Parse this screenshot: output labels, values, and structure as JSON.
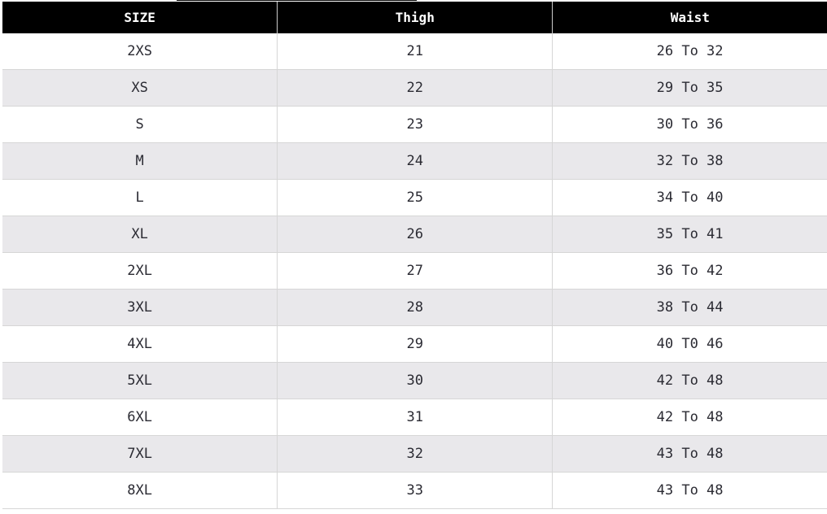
{
  "table": {
    "headers": [
      "SIZE",
      "Thigh",
      "Waist"
    ],
    "rows": [
      [
        "2XS",
        "21",
        "26 To 32"
      ],
      [
        "XS",
        "22",
        "29 To 35"
      ],
      [
        "S",
        "23",
        "30 To 36"
      ],
      [
        "M",
        "24",
        "32 To 38"
      ],
      [
        "L",
        "25",
        "34 To 40"
      ],
      [
        "XL",
        "26",
        "35 To 41"
      ],
      [
        "2XL",
        "27",
        "36 To 42"
      ],
      [
        "3XL",
        "28",
        "38 To 44"
      ],
      [
        "4XL",
        "29",
        "40 T0 46"
      ],
      [
        "5XL",
        "30",
        "42 To 48"
      ],
      [
        "6XL",
        "31",
        "42 To 48"
      ],
      [
        "7XL",
        "32",
        "43 To 48"
      ],
      [
        "8XL",
        "33",
        "43 To 48"
      ]
    ]
  }
}
